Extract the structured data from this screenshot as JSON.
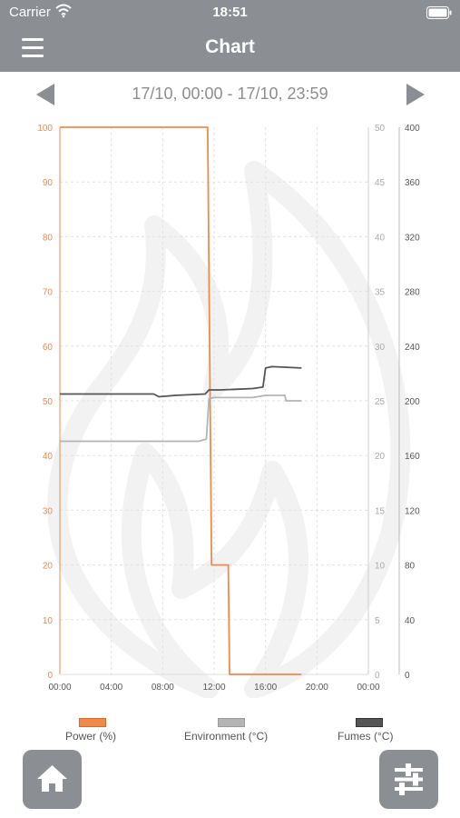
{
  "status_bar": {
    "carrier": "Carrier",
    "time": "18:51",
    "wifi_icon": "wifi-icon",
    "battery_icon": "battery-icon"
  },
  "nav": {
    "title": "Chart",
    "menu_icon": "hamburger-menu-icon"
  },
  "date_nav": {
    "range": "17/10, 00:00 - 17/10, 23:59",
    "prev_icon": "triangle-left-icon",
    "next_icon": "triangle-right-icon"
  },
  "colors": {
    "power": "#f08a4b",
    "environment": "#b4b4b4",
    "fumes": "#555555",
    "bar": "#8b8f93",
    "watermark": "#f1f1f1"
  },
  "chart_data": {
    "type": "line",
    "x_ticks": [
      "00:00",
      "04:00",
      "08:00",
      "12:00",
      "16:00",
      "20:00",
      "00:00"
    ],
    "xlim_hours": [
      0,
      24
    ],
    "axes": {
      "left": {
        "ticks": [
          "100",
          "90",
          "80",
          "70",
          "60",
          "50",
          "40",
          "30",
          "20",
          "10",
          "0"
        ],
        "ylim": [
          0,
          100
        ]
      },
      "right1": {
        "ticks": [
          "50",
          "45",
          "40",
          "35",
          "30",
          "25",
          "20",
          "15",
          "10",
          "5",
          "0"
        ],
        "ylim": [
          0,
          50
        ]
      },
      "right2": {
        "ticks": [
          "400",
          "360",
          "320",
          "280",
          "240",
          "200",
          "160",
          "120",
          "80",
          "40",
          "0"
        ],
        "ylim": [
          0,
          400
        ]
      }
    },
    "series": [
      {
        "name": "Power (%)",
        "axis": "left",
        "color": "#f08a4b",
        "points": [
          [
            0,
            100
          ],
          [
            11.5,
            100
          ],
          [
            11.8,
            20
          ],
          [
            13.1,
            20
          ],
          [
            13.2,
            0
          ],
          [
            18.8,
            0
          ]
        ]
      },
      {
        "name": "Environment (°C)",
        "axis": "right1",
        "color": "#b4b4b4",
        "points": [
          [
            0,
            21.3
          ],
          [
            8,
            21.3
          ],
          [
            10.8,
            21.3
          ],
          [
            11.4,
            21.5
          ],
          [
            11.6,
            25.2
          ],
          [
            12,
            25.3
          ],
          [
            15,
            25.3
          ],
          [
            16,
            25.5
          ],
          [
            17.5,
            25.5
          ],
          [
            17.6,
            25
          ],
          [
            18.8,
            25
          ]
        ]
      },
      {
        "name": "Fumes (°C)",
        "axis": "right2",
        "color": "#555555",
        "points": [
          [
            0,
            205
          ],
          [
            5,
            205
          ],
          [
            7.3,
            205
          ],
          [
            7.7,
            203
          ],
          [
            9,
            204
          ],
          [
            11.3,
            205
          ],
          [
            11.6,
            208
          ],
          [
            12.5,
            208
          ],
          [
            15,
            209
          ],
          [
            15.8,
            210
          ],
          [
            16,
            224
          ],
          [
            16.5,
            225
          ],
          [
            18.8,
            224
          ]
        ]
      }
    ]
  },
  "legend": {
    "power": "Power (%)",
    "environment": "Environment (°C)",
    "fumes": "Fumes (°C)"
  },
  "buttons": {
    "home_icon": "home-icon",
    "settings_icon": "sliders-icon"
  }
}
